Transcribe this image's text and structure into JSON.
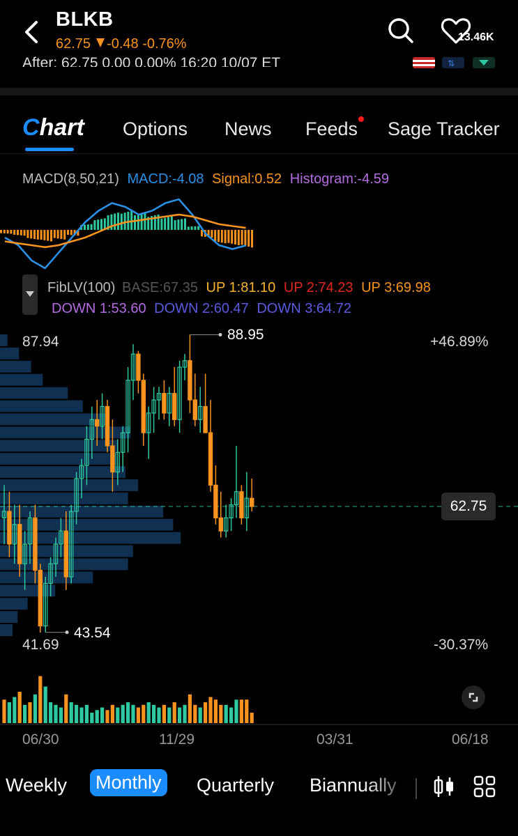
{
  "header": {
    "ticker": "BLKB",
    "price": "62.75",
    "change": "-0.48",
    "change_pct": "-0.76%",
    "after_hours": "After: 62.75 0.00 0.00% 16:20 10/07 ET",
    "watchers": "13.46K"
  },
  "tabs": [
    {
      "label": "Chart",
      "first_letter": "C",
      "rest": "hart",
      "active": true
    },
    {
      "label": "Options"
    },
    {
      "label": "News"
    },
    {
      "label": "Feeds",
      "has_dot": true
    },
    {
      "label": "Sage Tracker"
    }
  ],
  "macd": {
    "name": "MACD(8,50,21)",
    "macd": "MACD:-4.08",
    "signal": "Signal:0.52",
    "histogram": "Histogram:-4.59"
  },
  "fib": {
    "name": "FibLV(100)",
    "base": "BASE:67.35",
    "up1": "UP 1:81.10",
    "up2": "UP 2:74.23",
    "up3": "UP 3:69.98",
    "down1": "DOWN 1:53.60",
    "down2": "DOWN 2:60.47",
    "down3": "DOWN 3:64.72"
  },
  "price_axis": {
    "top": "87.94",
    "bottom": "41.69",
    "high_label": "88.95",
    "low_label": "43.54",
    "top_pct": "+46.89%",
    "bottom_pct": "-30.37%",
    "current": "62.75"
  },
  "dates": [
    "06/30",
    "11/29",
    "03/31",
    "06/18"
  ],
  "periods": [
    {
      "label": "Weekly"
    },
    {
      "label": "Monthly",
      "active": true
    },
    {
      "label": "Quarterly"
    },
    {
      "label": "Biannually"
    }
  ],
  "colors": {
    "up": "#2ec9a0",
    "down": "#f7931e",
    "accent": "#1a8cff",
    "macd_line": "#2b8fe6",
    "signal_line": "#f7931e",
    "histogram_text": "#b36be0",
    "up2": "#e0271d",
    "down_text": "#5a5adf",
    "volume_profile": "#0f3050"
  },
  "chart_data": {
    "type": "candlestick",
    "ylim": [
      41.69,
      87.94
    ],
    "high": 88.95,
    "low": 43.54,
    "last": 62.75,
    "candles": [
      {
        "o": 61,
        "h": 66,
        "l": 57,
        "c": 62
      },
      {
        "o": 62,
        "h": 65,
        "l": 55,
        "c": 57
      },
      {
        "o": 57,
        "h": 63,
        "l": 54,
        "c": 60
      },
      {
        "o": 60,
        "h": 63,
        "l": 52,
        "c": 54
      },
      {
        "o": 54,
        "h": 59,
        "l": 50,
        "c": 57
      },
      {
        "o": 57,
        "h": 62,
        "l": 54,
        "c": 61
      },
      {
        "o": 61,
        "h": 63,
        "l": 51,
        "c": 53
      },
      {
        "o": 53,
        "h": 54,
        "l": 43.5,
        "c": 44.5
      },
      {
        "o": 44.5,
        "h": 52,
        "l": 43.54,
        "c": 51
      },
      {
        "o": 51,
        "h": 55,
        "l": 49,
        "c": 54
      },
      {
        "o": 54,
        "h": 58,
        "l": 52,
        "c": 57
      },
      {
        "o": 57,
        "h": 61,
        "l": 55,
        "c": 59
      },
      {
        "o": 59,
        "h": 62,
        "l": 50,
        "c": 52
      },
      {
        "o": 52,
        "h": 63,
        "l": 51,
        "c": 62
      },
      {
        "o": 62,
        "h": 68,
        "l": 60,
        "c": 67
      },
      {
        "o": 67,
        "h": 70,
        "l": 64,
        "c": 69
      },
      {
        "o": 69,
        "h": 75,
        "l": 66,
        "c": 73
      },
      {
        "o": 73,
        "h": 78,
        "l": 70,
        "c": 76
      },
      {
        "o": 76,
        "h": 79,
        "l": 72,
        "c": 75
      },
      {
        "o": 75,
        "h": 80,
        "l": 73,
        "c": 78
      },
      {
        "o": 78,
        "h": 79,
        "l": 71,
        "c": 72
      },
      {
        "o": 72,
        "h": 76,
        "l": 65,
        "c": 68
      },
      {
        "o": 68,
        "h": 73,
        "l": 66,
        "c": 71
      },
      {
        "o": 71,
        "h": 75,
        "l": 68,
        "c": 74
      },
      {
        "o": 74,
        "h": 84,
        "l": 71,
        "c": 82
      },
      {
        "o": 82,
        "h": 87.5,
        "l": 79,
        "c": 86
      },
      {
        "o": 86,
        "h": 86.5,
        "l": 80,
        "c": 82
      },
      {
        "o": 82,
        "h": 83,
        "l": 72,
        "c": 74
      },
      {
        "o": 74,
        "h": 78,
        "l": 70,
        "c": 77
      },
      {
        "o": 77,
        "h": 81,
        "l": 74,
        "c": 79
      },
      {
        "o": 79,
        "h": 81,
        "l": 76,
        "c": 80
      },
      {
        "o": 80,
        "h": 82,
        "l": 76,
        "c": 77
      },
      {
        "o": 77,
        "h": 81,
        "l": 75,
        "c": 80
      },
      {
        "o": 80,
        "h": 84,
        "l": 75,
        "c": 76
      },
      {
        "o": 76,
        "h": 85,
        "l": 74,
        "c": 84
      },
      {
        "o": 84,
        "h": 86,
        "l": 82,
        "c": 85
      },
      {
        "o": 85,
        "h": 88.95,
        "l": 77,
        "c": 79
      },
      {
        "o": 79,
        "h": 83,
        "l": 75,
        "c": 76
      },
      {
        "o": 76,
        "h": 81,
        "l": 74,
        "c": 78
      },
      {
        "o": 78,
        "h": 83,
        "l": 74,
        "c": 74
      },
      {
        "o": 74,
        "h": 79,
        "l": 65,
        "c": 66
      },
      {
        "o": 66,
        "h": 69,
        "l": 60,
        "c": 61
      },
      {
        "o": 61,
        "h": 65,
        "l": 58,
        "c": 59
      },
      {
        "o": 59,
        "h": 63,
        "l": 58,
        "c": 61
      },
      {
        "o": 61,
        "h": 64,
        "l": 59,
        "c": 63
      },
      {
        "o": 63,
        "h": 72,
        "l": 61,
        "c": 65
      },
      {
        "o": 65,
        "h": 66,
        "l": 60,
        "c": 61
      },
      {
        "o": 61,
        "h": 68,
        "l": 59,
        "c": 64
      },
      {
        "o": 64,
        "h": 67,
        "l": 62,
        "c": 62.75
      }
    ],
    "volume": [
      {
        "v": 0.45,
        "up": false
      },
      {
        "v": 0.4,
        "up": true
      },
      {
        "v": 0.5,
        "up": true
      },
      {
        "v": 0.6,
        "up": false
      },
      {
        "v": 0.35,
        "up": true
      },
      {
        "v": 0.4,
        "up": false
      },
      {
        "v": 0.55,
        "up": true
      },
      {
        "v": 0.9,
        "up": false
      },
      {
        "v": 0.7,
        "up": true
      },
      {
        "v": 0.4,
        "up": true
      },
      {
        "v": 0.35,
        "up": true
      },
      {
        "v": 0.3,
        "up": true
      },
      {
        "v": 0.55,
        "up": false
      },
      {
        "v": 0.4,
        "up": true
      },
      {
        "v": 0.35,
        "up": true
      },
      {
        "v": 0.3,
        "up": true
      },
      {
        "v": 0.35,
        "up": true
      },
      {
        "v": 0.2,
        "up": true
      },
      {
        "v": 0.25,
        "up": true
      },
      {
        "v": 0.3,
        "up": true
      },
      {
        "v": 0.25,
        "up": false
      },
      {
        "v": 0.35,
        "up": false
      },
      {
        "v": 0.3,
        "up": true
      },
      {
        "v": 0.35,
        "up": true
      },
      {
        "v": 0.4,
        "up": true
      },
      {
        "v": 0.35,
        "up": true
      },
      {
        "v": 0.3,
        "up": false
      },
      {
        "v": 0.35,
        "up": false
      },
      {
        "v": 0.4,
        "up": true
      },
      {
        "v": 0.35,
        "up": true
      },
      {
        "v": 0.3,
        "up": true
      },
      {
        "v": 0.35,
        "up": false
      },
      {
        "v": 0.3,
        "up": true
      },
      {
        "v": 0.4,
        "up": false
      },
      {
        "v": 0.3,
        "up": true
      },
      {
        "v": 0.35,
        "up": true
      },
      {
        "v": 0.55,
        "up": false
      },
      {
        "v": 0.35,
        "up": false
      },
      {
        "v": 0.3,
        "up": true
      },
      {
        "v": 0.4,
        "up": false
      },
      {
        "v": 0.5,
        "up": false
      },
      {
        "v": 0.45,
        "up": false
      },
      {
        "v": 0.35,
        "up": false
      },
      {
        "v": 0.35,
        "up": true
      },
      {
        "v": 0.3,
        "up": true
      },
      {
        "v": 0.45,
        "up": true
      },
      {
        "v": 0.45,
        "up": false
      },
      {
        "v": 0.45,
        "up": false
      },
      {
        "v": 0.2,
        "up": false
      }
    ],
    "volume_profile": [
      0.15,
      0.38,
      0.62,
      0.85,
      1.35,
      1.65,
      2.1,
      2.6,
      2.35,
      2.3,
      2.5,
      2.75,
      2.55,
      3.25,
      3.45,
      3.6,
      2.65,
      2.55,
      1.85,
      1.1,
      0.55,
      0.35,
      0.25
    ],
    "macd_line": [
      -2,
      -4,
      -8,
      -10,
      -6,
      -2,
      2,
      5,
      7,
      6,
      4,
      5,
      7,
      8,
      4,
      -1,
      -4,
      -5,
      -4.08
    ],
    "signal_line": [
      -3,
      -3.5,
      -4,
      -4.5,
      -4,
      -3,
      -2,
      -0.5,
      1,
      2,
      2.5,
      3,
      3.5,
      4,
      3.5,
      2.5,
      1.5,
      1,
      0.52
    ],
    "histogram": [
      -1,
      -1.5,
      -2.5,
      -3,
      -2.5,
      -1.5,
      1.5,
      3,
      4.5,
      5,
      4.5,
      4,
      3.5,
      3,
      1,
      -2,
      -3.5,
      -4,
      -4.59
    ]
  }
}
